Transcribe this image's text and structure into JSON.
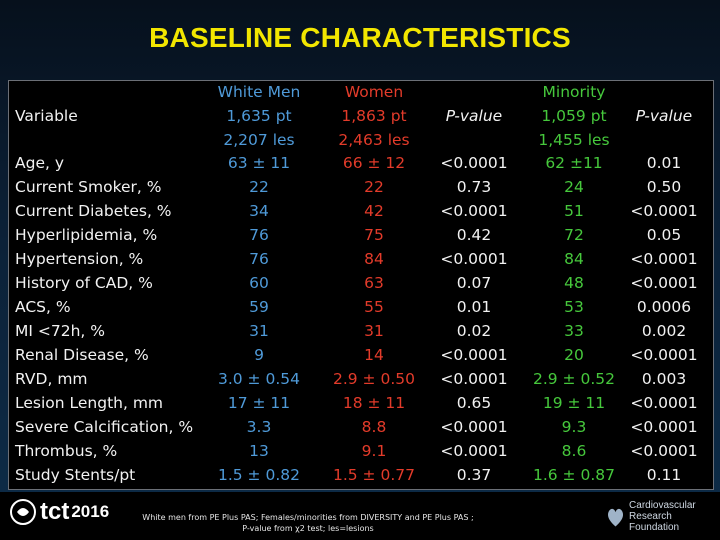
{
  "title": "BASELINE CHARACTERISTICS",
  "headers": {
    "variable": "Variable",
    "white_men": [
      "White Men",
      "1,635 pt",
      "2,207 les"
    ],
    "women": [
      "Women",
      "1,863 pt",
      "2,463 les"
    ],
    "pvalue1": "P-value",
    "minority": [
      "Minority",
      "1,059 pt",
      "1,455 les"
    ],
    "pvalue2": "P-value"
  },
  "rows": [
    {
      "label": "Age, y",
      "white_men": "63 ± 11",
      "women": "66 ± 12",
      "p1": "<0.0001",
      "minority": "62 ±11",
      "p2": "0.01"
    },
    {
      "label": "Current Smoker, %",
      "white_men": "22",
      "women": "22",
      "p1": "0.73",
      "minority": "24",
      "p2": "0.50"
    },
    {
      "label": "Current Diabetes, %",
      "white_men": "34",
      "women": "42",
      "p1": "<0.0001",
      "minority": "51",
      "p2": "<0.0001"
    },
    {
      "label": "Hyperlipidemia, %",
      "white_men": "76",
      "women": "75",
      "p1": "0.42",
      "minority": "72",
      "p2": "0.05"
    },
    {
      "label": "Hypertension, %",
      "white_men": "76",
      "women": "84",
      "p1": "<0.0001",
      "minority": "84",
      "p2": "<0.0001"
    },
    {
      "label": "History of CAD, %",
      "white_men": "60",
      "women": "63",
      "p1": "0.07",
      "minority": "48",
      "p2": "<0.0001"
    },
    {
      "label": "ACS, %",
      "white_men": "59",
      "women": "55",
      "p1": "0.01",
      "minority": "53",
      "p2": "0.0006"
    },
    {
      "label": "MI <72h, %",
      "white_men": "31",
      "women": "31",
      "p1": "0.02",
      "minority": "33",
      "p2": "0.002"
    },
    {
      "label": "Renal Disease, %",
      "white_men": "9",
      "women": "14",
      "p1": "<0.0001",
      "minority": "20",
      "p2": "<0.0001"
    },
    {
      "label": "RVD, mm",
      "white_men": "3.0 ± 0.54",
      "women": "2.9 ± 0.50",
      "p1": "<0.0001",
      "minority": "2.9 ± 0.52",
      "p2": "0.003"
    },
    {
      "label": "Lesion Length, mm",
      "white_men": "17 ± 11",
      "women": "18 ± 11",
      "p1": "0.65",
      "minority": "19 ± 11",
      "p2": "<0.0001"
    },
    {
      "label": "Severe Calcification, %",
      "white_men": "3.3",
      "women": "8.8",
      "p1": "<0.0001",
      "minority": "9.3",
      "p2": "<0.0001"
    },
    {
      "label": "Thrombus, %",
      "white_men": "13",
      "women": "9.1",
      "p1": "<0.0001",
      "minority": "8.6",
      "p2": "<0.0001"
    },
    {
      "label": "Study Stents/pt",
      "white_men": "1.5 ± 0.82",
      "women": "1.5 ± 0.77",
      "p1": "0.37",
      "minority": "1.6 ± 0.87",
      "p2": "0.11"
    }
  ],
  "footer": {
    "logo_text": "tct",
    "logo_year": "2016",
    "note_line1": "White men from PE Plus PAS; Females/minorities from DIVERSITY and PE Plus PAS ;",
    "note_line2": "P-value from χ2 test; les=lesions",
    "crf_line1": "Cardiovascular",
    "crf_line2": "Research Foundation"
  },
  "colors": {
    "title": "#f2e600",
    "white_men": "#4f9ad8",
    "women": "#e33b2a",
    "minority": "#46c83c",
    "text": "#f2f2f2"
  }
}
